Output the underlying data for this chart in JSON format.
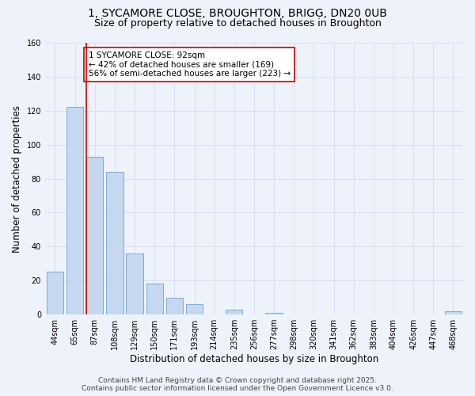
{
  "title_line1": "1, SYCAMORE CLOSE, BROUGHTON, BRIGG, DN20 0UB",
  "title_line2": "Size of property relative to detached houses in Broughton",
  "xlabel": "Distribution of detached houses by size in Broughton",
  "ylabel": "Number of detached properties",
  "categories": [
    "44sqm",
    "65sqm",
    "87sqm",
    "108sqm",
    "129sqm",
    "150sqm",
    "171sqm",
    "193sqm",
    "214sqm",
    "235sqm",
    "256sqm",
    "277sqm",
    "298sqm",
    "320sqm",
    "341sqm",
    "362sqm",
    "383sqm",
    "404sqm",
    "426sqm",
    "447sqm",
    "468sqm"
  ],
  "values": [
    25,
    122,
    93,
    84,
    36,
    18,
    10,
    6,
    0,
    3,
    0,
    1,
    0,
    0,
    0,
    0,
    0,
    0,
    0,
    0,
    2
  ],
  "bar_color": "#c5d8f0",
  "bar_edge_color": "#7eadd4",
  "vline_x_index": 2,
  "vline_color": "#cc0000",
  "annotation_text": "1 SYCAMORE CLOSE: 92sqm\n← 42% of detached houses are smaller (169)\n56% of semi-detached houses are larger (223) →",
  "annotation_box_color": "#ffffff",
  "annotation_box_edge": "#cc0000",
  "ylim": [
    0,
    160
  ],
  "yticks": [
    0,
    20,
    40,
    60,
    80,
    100,
    120,
    140,
    160
  ],
  "footer_line1": "Contains HM Land Registry data © Crown copyright and database right 2025.",
  "footer_line2": "Contains public sector information licensed under the Open Government Licence v3.0.",
  "background_color": "#eef2fb",
  "grid_color": "#d8dff0",
  "title_fontsize": 10,
  "subtitle_fontsize": 9,
  "axis_label_fontsize": 8.5,
  "tick_fontsize": 7,
  "annotation_fontsize": 7.5,
  "footer_fontsize": 6.5,
  "bar_width": 0.85
}
